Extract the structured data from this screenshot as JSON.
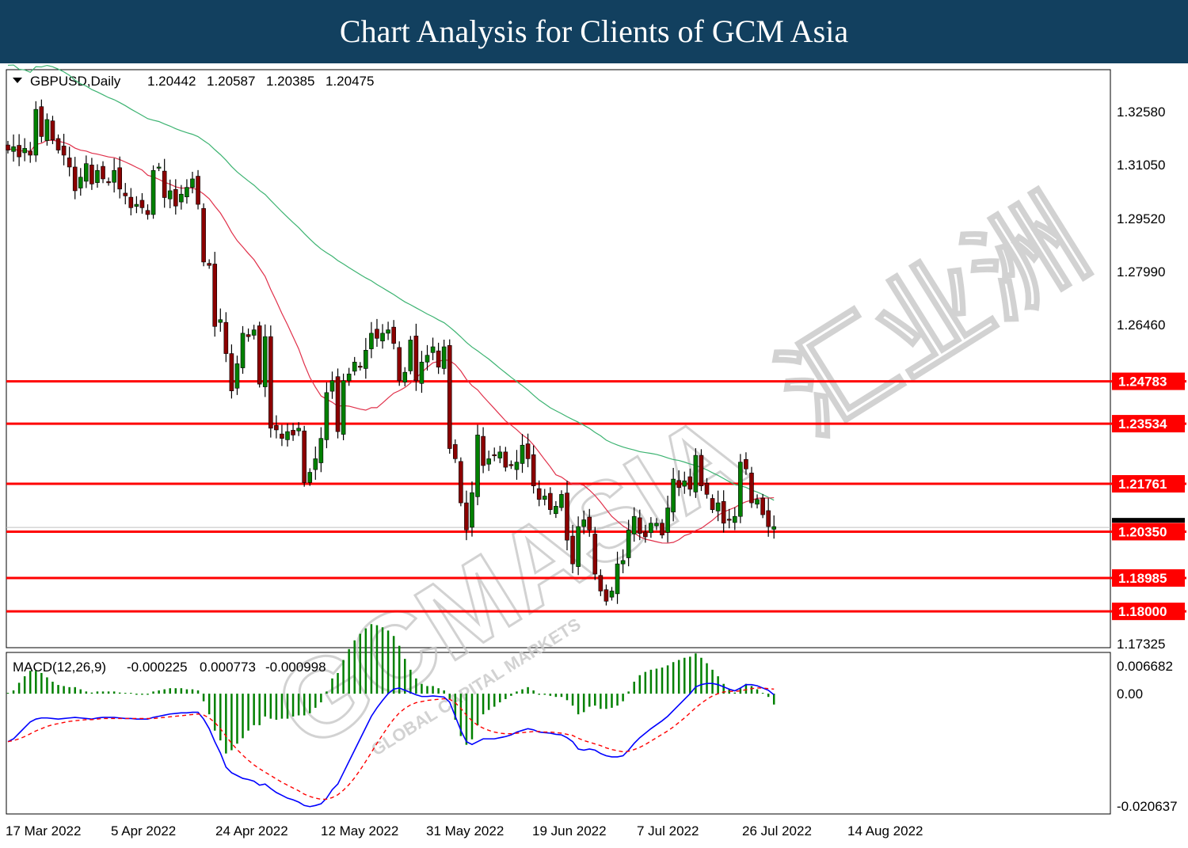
{
  "banner": {
    "title": "Chart Analysis for Clients of GCM Asia"
  },
  "watermark": {
    "brand": "GCMASIA",
    "tagline": "GLOBAL CAPITAL MARKETS",
    "chinese": "汇业洲"
  },
  "colors": {
    "bull": "#008000",
    "bear": "#8b0000",
    "wick": "#000000",
    "ma_fast": "#e0304a",
    "ma_slow": "#3cb371",
    "level": "#ff0000",
    "macd_hist": "#008000",
    "macd_line": "#0000ff",
    "signal_line": "#ff0000"
  },
  "chart_data": [
    {
      "type": "candlestick",
      "title": "GBPUSD,Daily",
      "ohlc_readout": [
        "1.20442",
        "1.20587",
        "1.20385",
        "1.20475"
      ],
      "x_tick_labels": [
        "17 Mar 2022",
        "5 Apr 2022",
        "24 Apr 2022",
        "12 May 2022",
        "31 May 2022",
        "19 Jun 2022",
        "7 Jul 2022",
        "26 Jul 2022",
        "14 Aug 2022"
      ],
      "y_tick_labels": [
        "1.32580",
        "1.31050",
        "1.29520",
        "1.27990",
        "1.26460",
        "1.17325"
      ],
      "ylim": [
        1.1693,
        1.3397
      ],
      "levels": [
        {
          "label": "1.24783",
          "value": 1.24783
        },
        {
          "label": "1.23534",
          "value": 1.23534
        },
        {
          "label": "1.21761",
          "value": 1.21761
        },
        {
          "label": "1.20350",
          "value": 1.2035
        },
        {
          "label": "1.18985",
          "value": 1.18985
        },
        {
          "label": "1.18000",
          "value": 1.18
        }
      ],
      "current_price": 1.20475,
      "closes": [
        1.316,
        1.317,
        1.314,
        1.3165,
        1.3145,
        1.328,
        1.32,
        1.325,
        1.319,
        1.316,
        1.3145,
        1.311,
        1.304,
        1.308,
        1.312,
        1.306,
        1.31,
        1.3075,
        1.3065,
        1.31,
        1.3045,
        1.3025,
        1.299,
        1.3,
        1.299,
        1.297,
        1.31,
        1.311,
        1.302,
        1.304,
        1.2995,
        1.303,
        1.305,
        1.3075,
        1.3,
        1.283,
        1.282,
        1.264,
        1.266,
        1.256,
        1.245,
        1.253,
        1.262,
        1.261,
        1.263,
        1.247,
        1.261,
        1.234,
        1.2335,
        1.231,
        1.233,
        1.232,
        1.234,
        1.218,
        1.221,
        1.225,
        1.231,
        1.2445,
        1.248,
        1.233,
        1.248,
        1.25,
        1.2535,
        1.252,
        1.257,
        1.262,
        1.2605,
        1.262,
        1.263,
        1.259,
        1.248,
        1.2505,
        1.26,
        1.248,
        1.2535,
        1.2555,
        1.258,
        1.252,
        1.258,
        1.228,
        1.225,
        1.212,
        1.204,
        1.215,
        1.232,
        1.223,
        1.225,
        1.226,
        1.227,
        1.2225,
        1.223,
        1.224,
        1.229,
        1.225,
        1.217,
        1.213,
        1.214,
        1.21,
        1.211,
        1.2145,
        1.201,
        1.194,
        1.205,
        1.207,
        1.204,
        1.191,
        1.186,
        1.183,
        1.186,
        1.194,
        1.195,
        1.204,
        1.208,
        1.203,
        1.202,
        1.206,
        1.206,
        1.2025,
        1.2105,
        1.219,
        1.2165,
        1.2185,
        1.216,
        1.226,
        1.217,
        1.2145,
        1.21,
        1.212,
        1.206,
        1.207,
        1.208,
        1.224,
        1.222,
        1.212,
        1.213,
        1.2085,
        1.205,
        1.205
      ]
    },
    {
      "type": "line",
      "title": "MACD(12,26,9)",
      "values_readout": [
        "-0.000225",
        "0.000773",
        "-0.000998"
      ],
      "y_tick_labels": [
        "0.006682",
        "0.00",
        "-0.020637"
      ],
      "ylim": [
        -0.0213,
        0.0073
      ],
      "series": [
        {
          "name": "MACD(12,26,9)",
          "values": [
            -0.0085,
            -0.008,
            -0.007,
            -0.006,
            -0.005,
            -0.0045,
            -0.0043,
            -0.0043,
            -0.0044,
            -0.0045,
            -0.0044,
            -0.0043,
            -0.0042,
            -0.0043,
            -0.0044,
            -0.0045,
            -0.0043,
            -0.0042,
            -0.0042,
            -0.0042,
            -0.0043,
            -0.0044,
            -0.0044,
            -0.0045,
            -0.0045,
            -0.0045,
            -0.0042,
            -0.004,
            -0.0038,
            -0.0036,
            -0.0035,
            -0.0034,
            -0.0034,
            -0.0033,
            -0.0033,
            -0.0045,
            -0.0062,
            -0.0085,
            -0.0105,
            -0.013,
            -0.014,
            -0.0145,
            -0.015,
            -0.0152,
            -0.0155,
            -0.0162,
            -0.016,
            -0.0168,
            -0.0175,
            -0.018,
            -0.0185,
            -0.0188,
            -0.0192,
            -0.0198,
            -0.02,
            -0.0198,
            -0.0195,
            -0.0185,
            -0.017,
            -0.016,
            -0.014,
            -0.012,
            -0.01,
            -0.008,
            -0.006,
            -0.004,
            -0.0025,
            -0.0012,
            0.0,
            0.0008,
            0.001,
            0.0006,
            0.0002,
            -0.0002,
            -0.0005,
            -0.0005,
            -0.0004,
            -0.0005,
            -0.0006,
            -0.0015,
            -0.004,
            -0.0065,
            -0.0085,
            -0.009,
            -0.0085,
            -0.008,
            -0.008,
            -0.008,
            -0.0078,
            -0.0076,
            -0.0073,
            -0.0068,
            -0.0065,
            -0.0062,
            -0.0064,
            -0.0068,
            -0.0069,
            -0.007,
            -0.0072,
            -0.0073,
            -0.0078,
            -0.0085,
            -0.0098,
            -0.01,
            -0.0098,
            -0.01,
            -0.0106,
            -0.011,
            -0.0112,
            -0.0112,
            -0.011,
            -0.01,
            -0.0088,
            -0.0078,
            -0.007,
            -0.0062,
            -0.0055,
            -0.0048,
            -0.004,
            -0.003,
            -0.002,
            -0.001,
            0.0,
            0.0012,
            0.0016,
            0.0018,
            0.0018,
            0.0016,
            0.0012,
            0.0008,
            0.0005,
            0.001,
            0.0016,
            0.0016,
            0.0014,
            0.001,
            0.0006,
            -0.0002
          ]
        },
        {
          "name": "Signal",
          "values": [
            -0.0085,
            -0.0083,
            -0.008,
            -0.0076,
            -0.0071,
            -0.0066,
            -0.0062,
            -0.0058,
            -0.0055,
            -0.0053,
            -0.0051,
            -0.0049,
            -0.0048,
            -0.0047,
            -0.0046,
            -0.0046,
            -0.0045,
            -0.0044,
            -0.0044,
            -0.0044,
            -0.0044,
            -0.0044,
            -0.0044,
            -0.0044,
            -0.0044,
            -0.0044,
            -0.0044,
            -0.0043,
            -0.0042,
            -0.0041,
            -0.004,
            -0.0039,
            -0.0038,
            -0.0037,
            -0.0036,
            -0.0038,
            -0.0043,
            -0.0051,
            -0.0062,
            -0.0075,
            -0.0088,
            -0.0099,
            -0.0109,
            -0.0118,
            -0.0126,
            -0.0133,
            -0.0139,
            -0.0145,
            -0.0151,
            -0.0157,
            -0.0162,
            -0.0167,
            -0.0172,
            -0.0178,
            -0.0182,
            -0.0185,
            -0.0187,
            -0.0187,
            -0.0184,
            -0.0179,
            -0.0171,
            -0.0161,
            -0.0149,
            -0.0135,
            -0.012,
            -0.0104,
            -0.0088,
            -0.0073,
            -0.0058,
            -0.0045,
            -0.0034,
            -0.0026,
            -0.002,
            -0.0016,
            -0.0014,
            -0.0012,
            -0.0011,
            -0.001,
            -0.0009,
            -0.001,
            -0.0016,
            -0.0026,
            -0.0038,
            -0.0048,
            -0.0056,
            -0.0061,
            -0.0065,
            -0.0068,
            -0.007,
            -0.0071,
            -0.0071,
            -0.007,
            -0.0069,
            -0.0068,
            -0.0067,
            -0.0067,
            -0.0068,
            -0.0068,
            -0.0069,
            -0.007,
            -0.0072,
            -0.0074,
            -0.0079,
            -0.0083,
            -0.0086,
            -0.0089,
            -0.0092,
            -0.0096,
            -0.0099,
            -0.0101,
            -0.0103,
            -0.0102,
            -0.0099,
            -0.0095,
            -0.009,
            -0.0084,
            -0.0078,
            -0.0072,
            -0.0066,
            -0.0059,
            -0.0051,
            -0.0043,
            -0.0034,
            -0.0025,
            -0.0017,
            -0.001,
            -0.0004,
            0.0,
            0.0003,
            0.0004,
            0.0004,
            0.0005,
            0.0007,
            0.0009,
            0.001,
            0.001,
            0.0009,
            0.0008
          ]
        }
      ]
    }
  ]
}
